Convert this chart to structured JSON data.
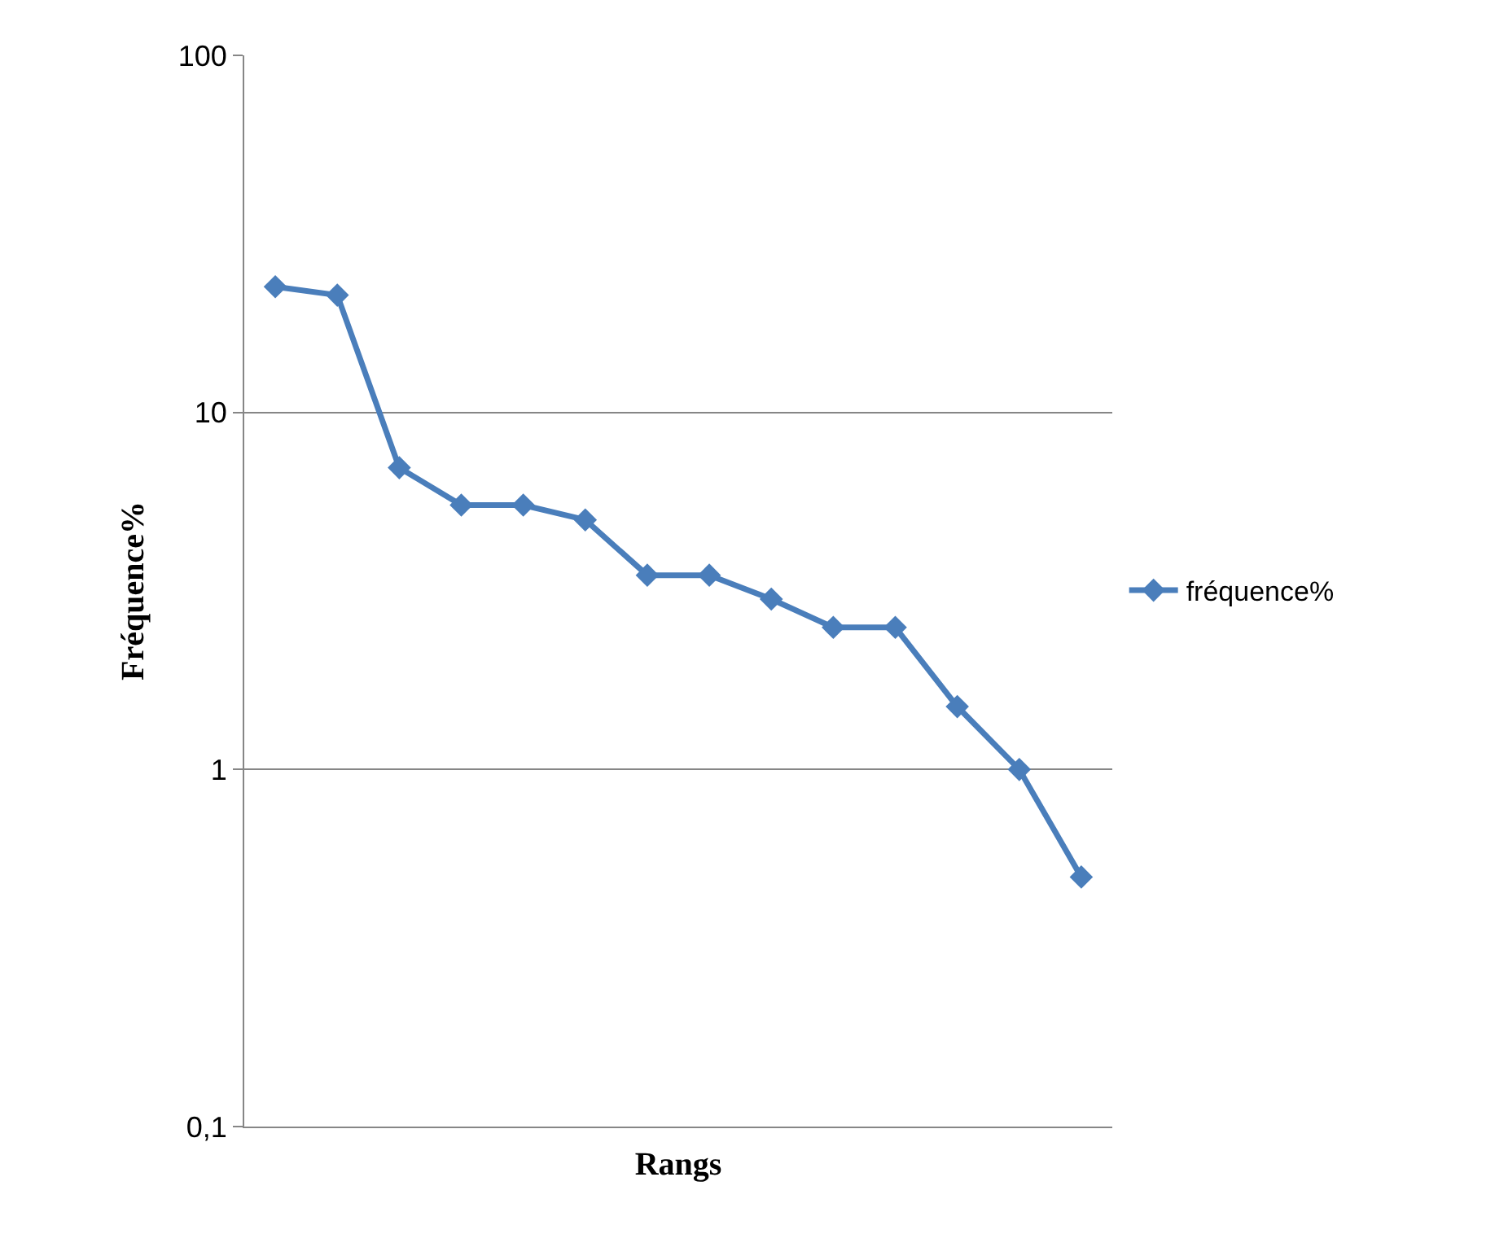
{
  "chart_data": {
    "type": "line",
    "xlabel": "Rangs",
    "ylabel": "Fréquence%",
    "categories": [
      null,
      null,
      null,
      null,
      null,
      null,
      null,
      null,
      null,
      null,
      null,
      null,
      null,
      null
    ],
    "series": [
      {
        "name": "fréquence%",
        "color": "#4a7ebb",
        "values": [
          22.5,
          21.3,
          7.0,
          5.5,
          5.5,
          5.0,
          3.5,
          3.5,
          3.0,
          2.5,
          2.5,
          1.5,
          1.0,
          0.5
        ]
      }
    ],
    "log": "y",
    "ylim": [
      0.1,
      100
    ],
    "yticks": [
      {
        "value": 0.1,
        "label": "0,1"
      },
      1,
      10,
      100
    ],
    "grid": "y",
    "legend": "right",
    "marker": "diamond",
    "line_style": "solid",
    "tick_labels": "y"
  }
}
